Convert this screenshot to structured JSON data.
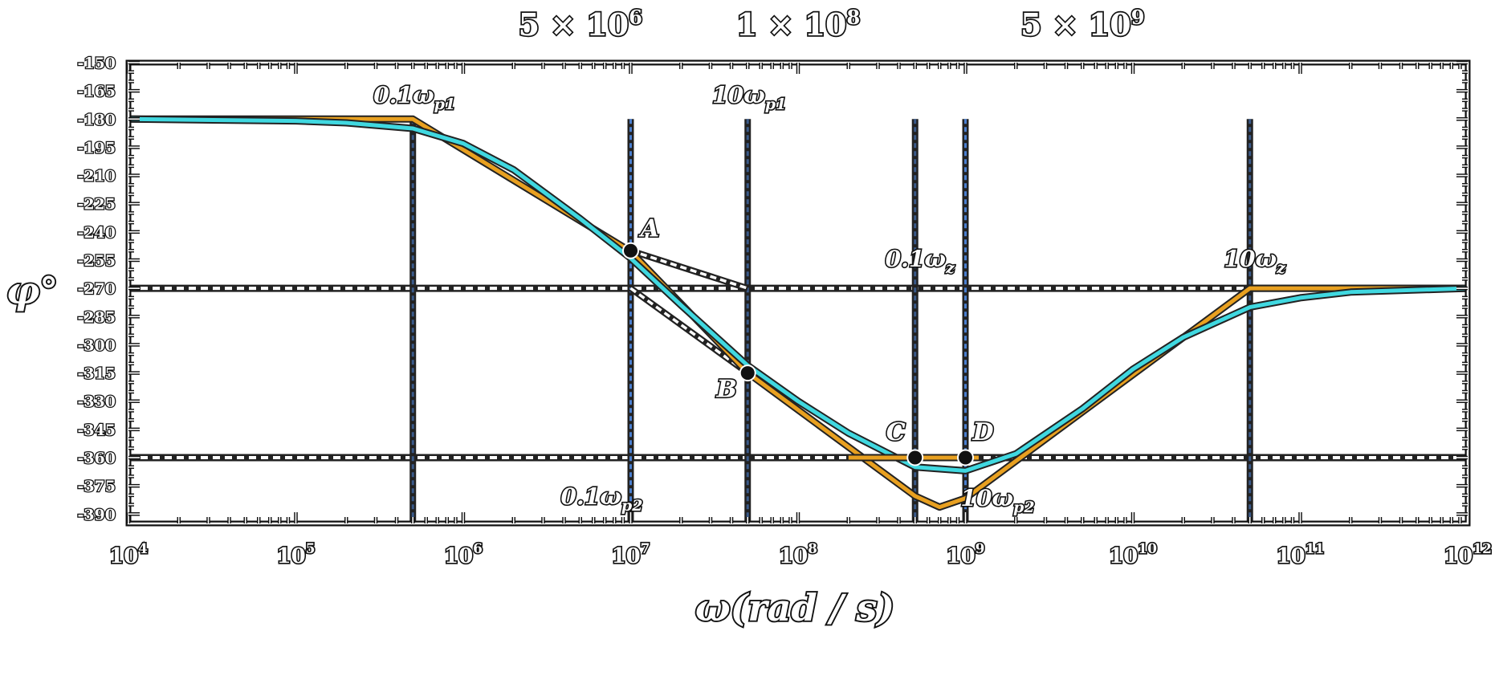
{
  "chart_data": {
    "type": "line",
    "xscale": "log",
    "xlim": [
      10000,
      1000000000000
    ],
    "ylim": [
      -395,
      -150
    ],
    "xlabel": "ω(rad / s)",
    "ylabel": "φ°",
    "xticks": [
      {
        "value": 10000,
        "base": "10",
        "exp": "4"
      },
      {
        "value": 100000,
        "base": "10",
        "exp": "5"
      },
      {
        "value": 1000000,
        "base": "10",
        "exp": "6"
      },
      {
        "value": 10000000,
        "base": "10",
        "exp": "7"
      },
      {
        "value": 100000000,
        "base": "10",
        "exp": "8"
      },
      {
        "value": 1000000000,
        "base": "10",
        "exp": "9"
      },
      {
        "value": 10000000000,
        "base": "10",
        "exp": "10"
      },
      {
        "value": 100000000000,
        "base": "10",
        "exp": "11"
      },
      {
        "value": 1000000000000,
        "base": "10",
        "exp": "12"
      }
    ],
    "yticks": [
      -150,
      -165,
      -180,
      -195,
      -210,
      -225,
      -240,
      -255,
      -270,
      -285,
      -300,
      -315,
      -330,
      -345,
      -360,
      -375,
      -390
    ],
    "top_labels": [
      {
        "value": 5000000,
        "text": "5 × 10",
        "exp": "6"
      },
      {
        "value": 100000000,
        "text": "1 × 10",
        "exp": "8"
      },
      {
        "value": 5000000000,
        "text": "5 × 10",
        "exp": "9"
      }
    ],
    "reference_lines": {
      "horizontal": [
        -270,
        -360
      ],
      "vertical": [
        {
          "value": 500000,
          "color": "#3a5a8a",
          "label": "0.1ω",
          "sub": "p1",
          "label_pos": "top"
        },
        {
          "value": 50000000,
          "color": "#3a5a8a",
          "label": "10ω",
          "sub": "p1",
          "label_pos": "top"
        },
        {
          "value": 10000000,
          "color": "#4a7fd0",
          "label": "0.1ω",
          "sub": "p2",
          "label_pos": "bottom"
        },
        {
          "value": 1000000000,
          "color": "#4a7fd0",
          "label": "10ω",
          "sub": "p2",
          "label_pos": "bottom-right"
        },
        {
          "value": 500000000,
          "color": "#3a5a8a",
          "label": "0.1ω",
          "sub": "z",
          "label_pos": "mid"
        },
        {
          "value": 50000000000,
          "color": "#3a5a8a",
          "label": "10ω",
          "sub": "z",
          "label_pos": "mid"
        }
      ]
    },
    "series": [
      {
        "color": "#e8a020",
        "x": [
          10000,
          500000,
          10000000,
          50000000,
          500000000,
          700000000,
          1000000000,
          50000000000,
          1000000000000
        ],
        "y": [
          -180,
          -180,
          -250.4,
          -314.9,
          -380.4,
          -386.3,
          -381.6,
          -270,
          -270
        ]
      },
      {
        "color": "#40d8e0",
        "x": [
          10000,
          100000,
          200000,
          500000,
          1000000,
          2000000,
          5000000,
          10000000,
          20000000,
          50000000,
          100000000,
          200000000,
          500000000,
          1000000000,
          2000000000,
          5000000000,
          10000000000,
          20000000000,
          50000000000,
          100000000000,
          200000000000,
          1000000000000
        ],
        "y": [
          -180,
          -181,
          -182,
          -185,
          -193,
          -207,
          -233,
          -254,
          -279,
          -311,
          -330,
          -347,
          -365,
          -367,
          -358,
          -334,
          -313,
          -296,
          -280,
          -275,
          -272,
          -270
        ]
      },
      {
        "color": "#e8a020",
        "x": [
          200000000,
          1200000000
        ],
        "y": [
          -360,
          -360
        ]
      }
    ],
    "asymptotes": [
      {
        "x": [
          10000000,
          50000000
        ],
        "y": [
          -250,
          -270
        ]
      },
      {
        "x": [
          10000000,
          50000000
        ],
        "y": [
          -270,
          -315
        ]
      }
    ],
    "points": [
      {
        "label": "A",
        "x": 10000000,
        "y": -250
      },
      {
        "label": "B",
        "x": 50000000,
        "y": -315
      },
      {
        "label": "C",
        "x": 500000000,
        "y": -360
      },
      {
        "label": "D",
        "x": 1000000000,
        "y": -360
      }
    ]
  }
}
